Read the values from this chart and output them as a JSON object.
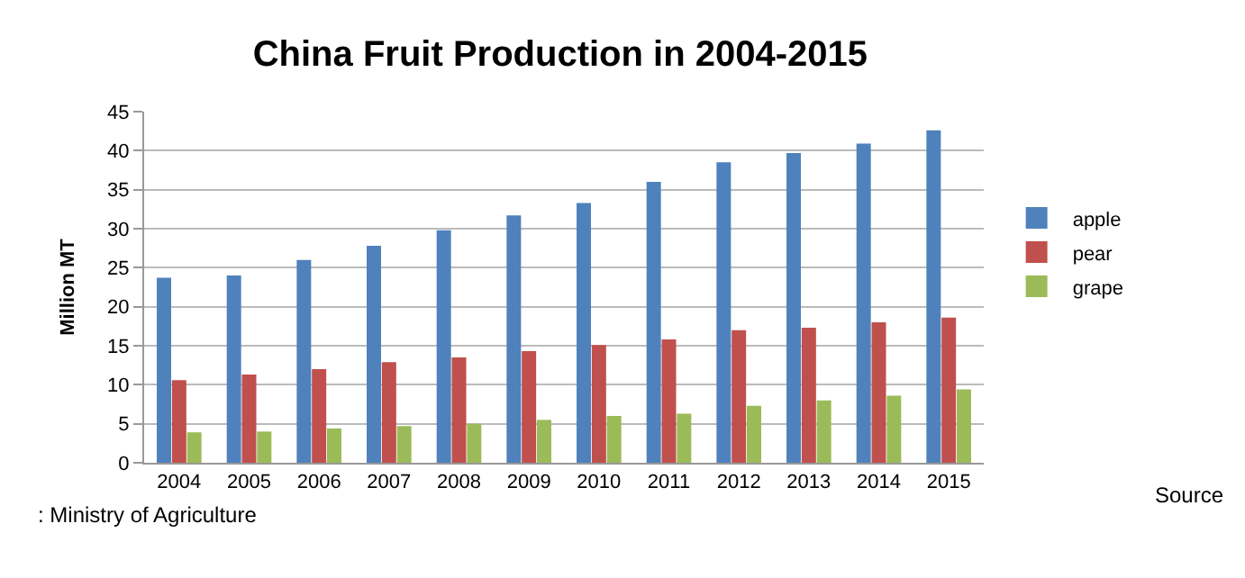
{
  "chart_data": {
    "type": "bar",
    "title": "China Fruit Production in 2004-2015",
    "ylabel": "Million MT",
    "categories": [
      "2004",
      "2005",
      "2006",
      "2007",
      "2008",
      "2009",
      "2010",
      "2011",
      "2012",
      "2013",
      "2014",
      "2015"
    ],
    "series": [
      {
        "name": "apple",
        "color": "#4f81bd",
        "values": [
          23.7,
          24.0,
          26.0,
          27.8,
          29.8,
          31.7,
          33.3,
          36.0,
          38.5,
          39.7,
          40.9,
          42.6
        ]
      },
      {
        "name": "pear",
        "color": "#c0504d",
        "values": [
          10.6,
          11.3,
          12.0,
          12.9,
          13.5,
          14.3,
          15.1,
          15.8,
          17.0,
          17.3,
          18.0,
          18.6
        ]
      },
      {
        "name": "grape",
        "color": "#9bbb59",
        "values": [
          3.9,
          4.0,
          4.4,
          4.7,
          5.0,
          5.5,
          6.0,
          6.3,
          7.3,
          8.0,
          8.6,
          9.4
        ]
      }
    ],
    "ylim": [
      0,
      45
    ],
    "yticks": [
      0,
      5,
      10,
      15,
      20,
      25,
      30,
      35,
      40,
      45
    ],
    "grid": "y",
    "legend": "right",
    "annotations": [
      "Source",
      ": Ministry of Agriculture"
    ]
  }
}
